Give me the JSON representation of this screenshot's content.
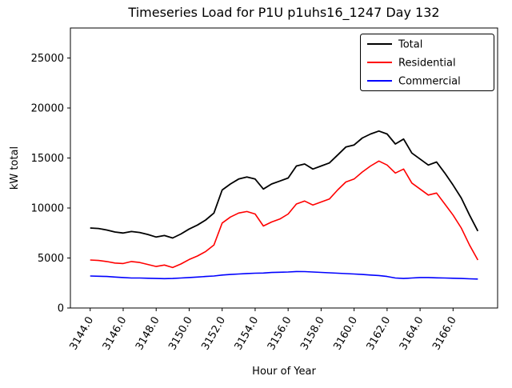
{
  "window": {
    "title": "Timeseries Load for P1U p1uhs16_1247  Day 132"
  },
  "chart_data": {
    "type": "line",
    "title": "Timeseries Load for P1U p1uhs16_1247  Day 132",
    "xlabel": "Hour of Year",
    "ylabel": "kW total",
    "xlim": [
      3142.8,
      3168.7
    ],
    "ylim": [
      0,
      28000
    ],
    "grid": false,
    "legend_position": "upper right",
    "xticks": [
      3144,
      3146,
      3148,
      3150,
      3152,
      3154,
      3156,
      3158,
      3160,
      3162,
      3164,
      3166
    ],
    "xtick_labels": [
      "3144.0",
      "3146.0",
      "3148.0",
      "3150.0",
      "3152.0",
      "3154.0",
      "3156.0",
      "3158.0",
      "3160.0",
      "3162.0",
      "3164.0",
      "3166.0"
    ],
    "yticks": [
      0,
      5000,
      10000,
      15000,
      20000,
      25000
    ],
    "ytick_labels": [
      "0",
      "5000",
      "10000",
      "15000",
      "20000",
      "25000"
    ],
    "x": [
      3144.0,
      3144.5,
      3145.0,
      3145.5,
      3146.0,
      3146.5,
      3147.0,
      3147.5,
      3148.0,
      3148.5,
      3149.0,
      3149.5,
      3150.0,
      3150.5,
      3151.0,
      3151.5,
      3152.0,
      3152.5,
      3153.0,
      3153.5,
      3154.0,
      3154.5,
      3155.0,
      3155.5,
      3156.0,
      3156.5,
      3157.0,
      3157.5,
      3158.0,
      3158.5,
      3159.0,
      3159.5,
      3160.0,
      3160.5,
      3161.0,
      3161.5,
      3162.0,
      3162.5,
      3163.0,
      3163.5,
      3164.0,
      3164.5,
      3165.0,
      3165.5,
      3166.0,
      3166.5,
      3167.0,
      3167.5
    ],
    "series": [
      {
        "name": "Total",
        "color": "#000000",
        "values": [
          8000,
          7950,
          7800,
          7600,
          7500,
          7650,
          7550,
          7350,
          7100,
          7250,
          7000,
          7400,
          7900,
          8300,
          8800,
          9500,
          11800,
          12400,
          12900,
          13100,
          12900,
          11900,
          12400,
          12700,
          13000,
          14200,
          14400,
          13900,
          14200,
          14500,
          15300,
          16100,
          16300,
          17000,
          17400,
          17700,
          17400,
          16400,
          16900,
          15500,
          14900,
          14300,
          14600,
          13500,
          12300,
          11000,
          9300,
          7700
        ]
      },
      {
        "name": "Residential",
        "color": "#ff0000",
        "values": [
          4800,
          4750,
          4650,
          4500,
          4450,
          4650,
          4550,
          4350,
          4150,
          4300,
          4050,
          4400,
          4850,
          5200,
          5650,
          6300,
          8500,
          9100,
          9500,
          9650,
          9400,
          8200,
          8600,
          8900,
          9400,
          10400,
          10700,
          10300,
          10600,
          10900,
          11800,
          12600,
          12900,
          13600,
          14200,
          14700,
          14300,
          13500,
          13900,
          12500,
          11900,
          11300,
          11500,
          10400,
          9300,
          8000,
          6300,
          4800
        ]
      },
      {
        "name": "Commercial",
        "color": "#0000ff",
        "values": [
          3200,
          3180,
          3150,
          3100,
          3050,
          3000,
          3000,
          2980,
          2950,
          2940,
          2950,
          3000,
          3050,
          3100,
          3150,
          3200,
          3300,
          3350,
          3400,
          3450,
          3480,
          3500,
          3550,
          3580,
          3600,
          3650,
          3640,
          3600,
          3560,
          3520,
          3480,
          3440,
          3400,
          3350,
          3300,
          3250,
          3150,
          3000,
          2950,
          3000,
          3050,
          3050,
          3020,
          3000,
          2980,
          2950,
          2920,
          2900
        ]
      }
    ]
  }
}
